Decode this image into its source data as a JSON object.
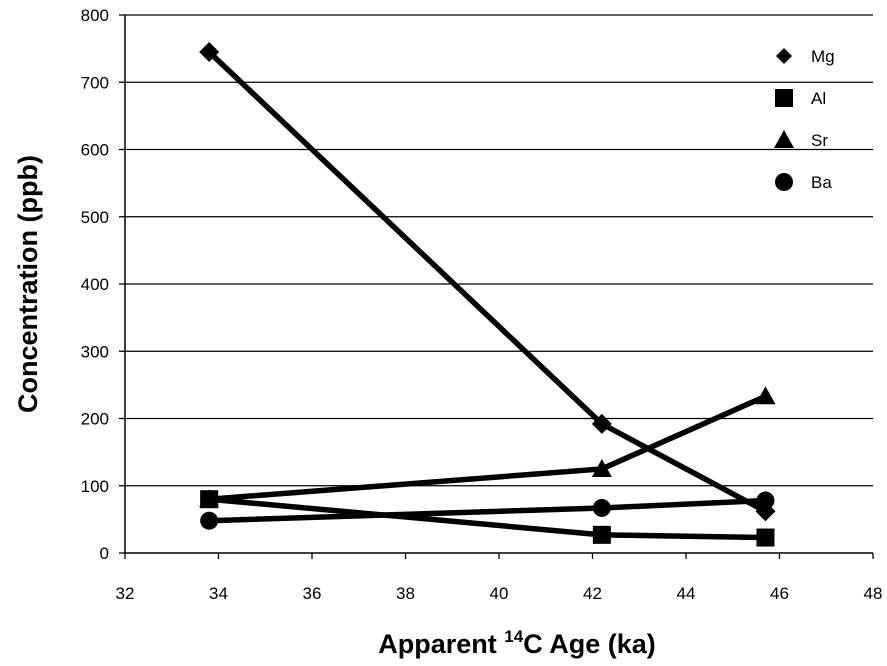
{
  "chart_data": {
    "type": "line",
    "title": "",
    "xlabel": {
      "prefix": "Apparent ",
      "superscript": "14",
      "suffix": "C Age (ka)"
    },
    "ylabel": "Concentration (ppb)",
    "xlim": [
      32,
      48
    ],
    "ylim": [
      0,
      800
    ],
    "xticks": [
      32,
      34,
      36,
      38,
      40,
      42,
      44,
      46,
      48
    ],
    "yticks": [
      0,
      100,
      200,
      300,
      400,
      500,
      600,
      700,
      800
    ],
    "grid": {
      "horizontal": true,
      "vertical": false
    },
    "legend_position": "top-right",
    "x": [
      33.8,
      42.2,
      45.7
    ],
    "series": [
      {
        "name": "Mg",
        "marker": "diamond",
        "values": [
          745,
          192,
          62
        ]
      },
      {
        "name": "Al",
        "marker": "square",
        "values": [
          80,
          27,
          23
        ]
      },
      {
        "name": "Sr",
        "marker": "triangle",
        "values": [
          80,
          125,
          233
        ]
      },
      {
        "name": "Ba",
        "marker": "circle",
        "values": [
          48,
          67,
          78
        ]
      }
    ],
    "colors": {
      "line": "#000000",
      "grid": "#000000"
    }
  }
}
